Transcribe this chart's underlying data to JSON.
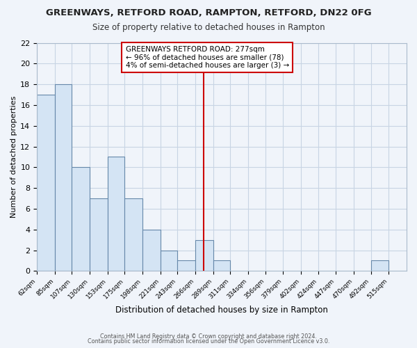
{
  "title": "GREENWAYS, RETFORD ROAD, RAMPTON, RETFORD, DN22 0FG",
  "subtitle": "Size of property relative to detached houses in Rampton",
  "xlabel": "Distribution of detached houses by size in Rampton",
  "ylabel": "Number of detached properties",
  "bar_edges": [
    62,
    85,
    107,
    130,
    153,
    175,
    198,
    221,
    243,
    266,
    289,
    311,
    334,
    356,
    379,
    402,
    424,
    447,
    470,
    492,
    515
  ],
  "bar_heights": [
    17,
    18,
    10,
    7,
    11,
    7,
    4,
    2,
    1,
    3,
    1,
    0,
    0,
    0,
    0,
    0,
    0,
    0,
    0,
    1,
    0
  ],
  "bar_color": "#d4e4f4",
  "bar_edge_color": "#6688aa",
  "grid_color": "#c8d4e4",
  "background_color": "#f0f4fa",
  "plot_bg_color": "#f0f4fa",
  "vline_x": 277,
  "vline_color": "#cc0000",
  "annotation_title": "GREENWAYS RETFORD ROAD: 277sqm",
  "annotation_line1": "← 96% of detached houses are smaller (78)",
  "annotation_line2": "4% of semi-detached houses are larger (3) →",
  "annotation_box_color": "#ffffff",
  "annotation_box_edge": "#cc0000",
  "tick_labels": [
    "62sqm",
    "85sqm",
    "107sqm",
    "130sqm",
    "153sqm",
    "175sqm",
    "198sqm",
    "221sqm",
    "243sqm",
    "266sqm",
    "289sqm",
    "311sqm",
    "334sqm",
    "356sqm",
    "379sqm",
    "402sqm",
    "424sqm",
    "447sqm",
    "470sqm",
    "492sqm",
    "515sqm"
  ],
  "ylim": [
    0,
    22
  ],
  "yticks": [
    0,
    2,
    4,
    6,
    8,
    10,
    12,
    14,
    16,
    18,
    20,
    22
  ],
  "footer_line1": "Contains HM Land Registry data © Crown copyright and database right 2024.",
  "footer_line2": "Contains public sector information licensed under the Open Government Licence v3.0."
}
